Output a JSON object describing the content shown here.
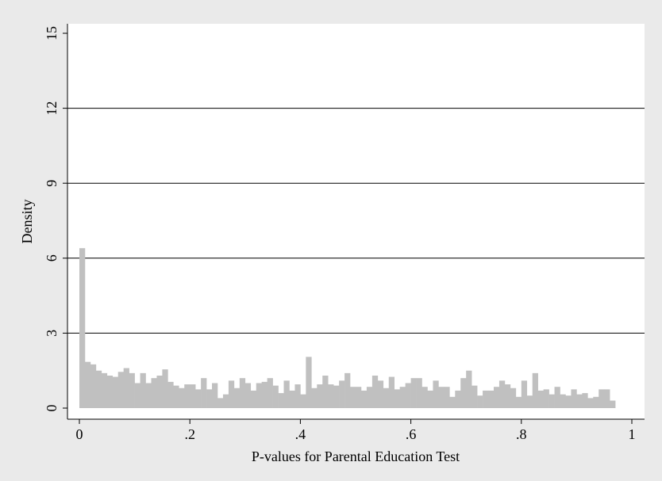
{
  "chart_data": {
    "type": "bar",
    "title": "",
    "xlabel": "P-values for Parental Education Test",
    "ylabel": "Density",
    "xlim": [
      0,
      1
    ],
    "ylim": [
      0,
      15
    ],
    "x_ticks": [
      {
        "value": 0,
        "label": "0"
      },
      {
        "value": 0.2,
        "label": ".2"
      },
      {
        "value": 0.4,
        "label": ".4"
      },
      {
        "value": 0.6,
        "label": ".6"
      },
      {
        "value": 0.8,
        "label": ".8"
      },
      {
        "value": 1,
        "label": "1"
      }
    ],
    "y_ticks": [
      {
        "value": 0,
        "label": "0"
      },
      {
        "value": 3,
        "label": "3"
      },
      {
        "value": 6,
        "label": "6"
      },
      {
        "value": 9,
        "label": "9"
      },
      {
        "value": 12,
        "label": "12"
      },
      {
        "value": 15,
        "label": "15"
      }
    ],
    "grid": "horizontal",
    "bin_width": 0.01,
    "bins_start": 0,
    "values": [
      6.4,
      1.85,
      1.75,
      1.5,
      1.4,
      1.3,
      1.25,
      1.45,
      1.6,
      1.4,
      1.0,
      1.4,
      1.0,
      1.2,
      1.3,
      1.55,
      1.05,
      0.9,
      0.8,
      0.95,
      0.95,
      0.75,
      1.2,
      0.75,
      1.0,
      0.4,
      0.55,
      1.1,
      0.8,
      1.2,
      1.0,
      0.7,
      1.0,
      1.05,
      1.2,
      0.9,
      0.6,
      1.1,
      0.7,
      0.95,
      0.55,
      2.05,
      0.8,
      0.95,
      1.3,
      0.95,
      0.9,
      1.1,
      1.4,
      0.85,
      0.85,
      0.7,
      0.85,
      1.3,
      1.1,
      0.8,
      1.25,
      0.75,
      0.85,
      1.0,
      1.2,
      1.2,
      0.85,
      0.7,
      1.1,
      0.85,
      0.85,
      0.45,
      0.7,
      1.2,
      1.5,
      0.9,
      0.5,
      0.7,
      0.7,
      0.85,
      1.1,
      0.95,
      0.8,
      0.45,
      1.1,
      0.5,
      1.4,
      0.7,
      0.75,
      0.55,
      0.85,
      0.55,
      0.5,
      0.75,
      0.55,
      0.6,
      0.4,
      0.45,
      0.75,
      0.75,
      0.3,
      0.0,
      0.0,
      0.0
    ],
    "bar_color": "#c0c0c0",
    "plot_background": "#ffffff",
    "outer_background": "#eaeaea"
  }
}
